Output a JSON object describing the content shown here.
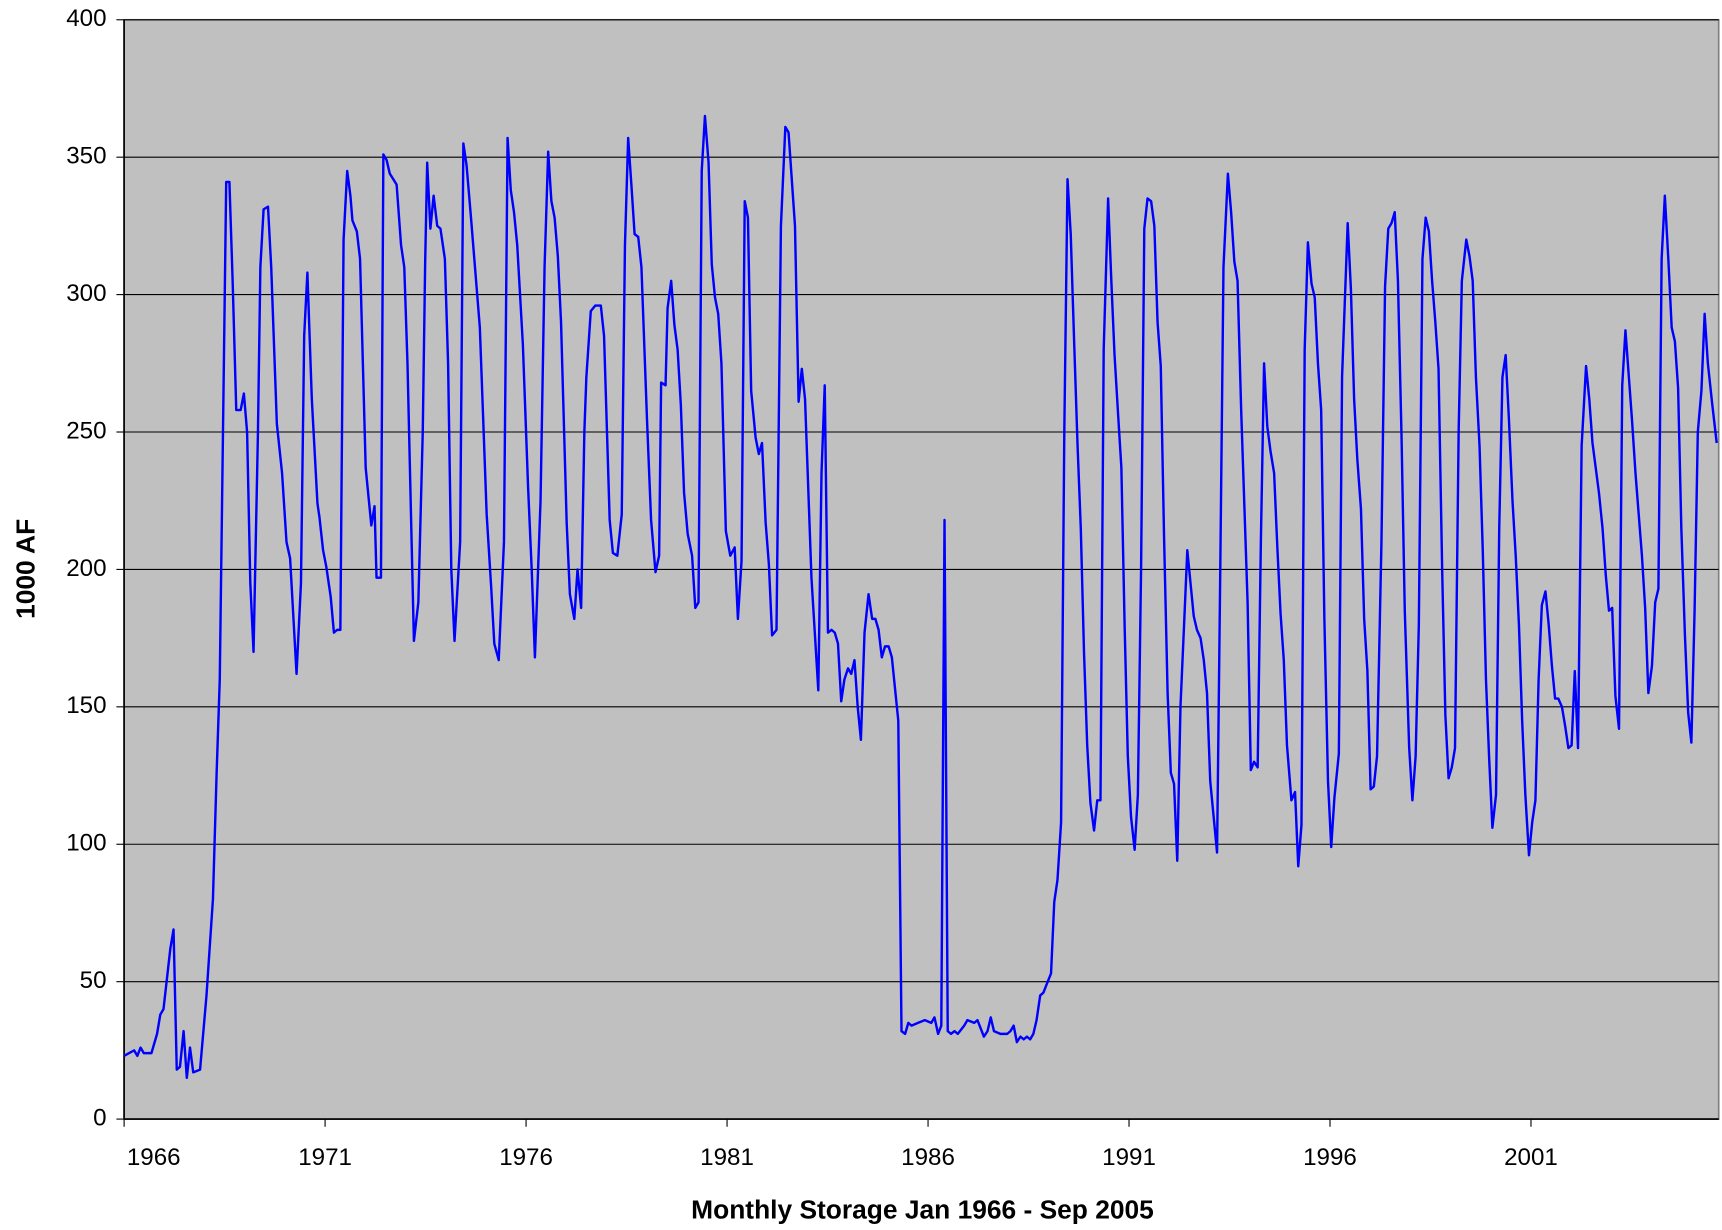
{
  "chart_data": {
    "type": "line",
    "title": "Monthly Storage  Jan 1966 - Sep 2005",
    "y_label": "1000 AF",
    "xlim": [
      1966,
      2005.67
    ],
    "xticks": [
      1966,
      1971,
      1976,
      1981,
      1986,
      1991,
      1996,
      2001
    ],
    "ylim": [
      0,
      400
    ],
    "yticks": [
      0,
      50,
      100,
      150,
      200,
      250,
      300,
      350,
      400
    ],
    "grid": true,
    "background": "#c0c0c0",
    "series": [
      {
        "color": "#0000ff",
        "x": [
          1966.0,
          1966.25,
          1966.33,
          1966.41,
          1966.49,
          1966.68,
          1966.82,
          1966.9,
          1966.98,
          1967.15,
          1967.23,
          1967.31,
          1967.39,
          1967.48,
          1967.56,
          1967.64,
          1967.72,
          1967.89,
          1968.05,
          1968.21,
          1968.3,
          1968.38,
          1968.46,
          1968.54,
          1968.62,
          1968.7,
          1968.79,
          1968.9,
          1968.98,
          1969.06,
          1969.14,
          1969.22,
          1969.33,
          1969.39,
          1969.47,
          1969.58,
          1969.66,
          1969.8,
          1969.93,
          1970.04,
          1970.13,
          1970.29,
          1970.4,
          1970.48,
          1970.56,
          1970.67,
          1970.81,
          1970.86,
          1970.95,
          1971.03,
          1971.14,
          1971.22,
          1971.3,
          1971.38,
          1971.46,
          1971.55,
          1971.63,
          1971.68,
          1971.79,
          1971.87,
          1972.01,
          1972.15,
          1972.23,
          1972.28,
          1972.39,
          1972.45,
          1972.53,
          1972.61,
          1972.78,
          1972.89,
          1972.97,
          1973.05,
          1973.21,
          1973.32,
          1973.43,
          1973.49,
          1973.54,
          1973.62,
          1973.7,
          1973.79,
          1973.87,
          1973.98,
          1974.06,
          1974.14,
          1974.22,
          1974.36,
          1974.44,
          1974.52,
          1974.63,
          1974.85,
          1975.02,
          1975.13,
          1975.21,
          1975.32,
          1975.45,
          1975.54,
          1975.62,
          1975.7,
          1975.78,
          1975.92,
          1976.05,
          1976.14,
          1976.22,
          1976.36,
          1976.46,
          1976.55,
          1976.63,
          1976.71,
          1976.79,
          1976.87,
          1977.01,
          1977.09,
          1977.2,
          1977.28,
          1977.37,
          1977.45,
          1977.5,
          1977.61,
          1977.72,
          1977.86,
          1977.94,
          1978.08,
          1978.16,
          1978.27,
          1978.38,
          1978.46,
          1978.54,
          1978.62,
          1978.7,
          1978.79,
          1978.87,
          1979.01,
          1979.11,
          1979.22,
          1979.31,
          1979.36,
          1979.47,
          1979.52,
          1979.61,
          1979.69,
          1979.77,
          1979.85,
          1979.93,
          1980.02,
          1980.13,
          1980.21,
          1980.29,
          1980.37,
          1980.45,
          1980.54,
          1980.62,
          1980.7,
          1980.78,
          1980.86,
          1980.97,
          1981.08,
          1981.19,
          1981.27,
          1981.36,
          1981.44,
          1981.52,
          1981.6,
          1981.71,
          1981.79,
          1981.87,
          1981.96,
          1982.04,
          1982.12,
          1982.23,
          1982.34,
          1982.45,
          1982.53,
          1982.69,
          1982.78,
          1982.86,
          1982.94,
          1983.1,
          1983.27,
          1983.35,
          1983.43,
          1983.51,
          1983.6,
          1983.68,
          1983.76,
          1983.84,
          1983.92,
          1984.01,
          1984.09,
          1984.17,
          1984.25,
          1984.33,
          1984.42,
          1984.52,
          1984.61,
          1984.69,
          1984.77,
          1984.85,
          1984.93,
          1985.02,
          1985.1,
          1985.26,
          1985.34,
          1985.43,
          1985.51,
          1985.59,
          1985.75,
          1985.92,
          1986.08,
          1986.16,
          1986.25,
          1986.33,
          1986.41,
          1986.49,
          1986.57,
          1986.66,
          1986.74,
          1986.9,
          1986.98,
          1987.15,
          1987.23,
          1987.31,
          1987.39,
          1987.48,
          1987.56,
          1987.64,
          1987.8,
          1987.97,
          1988.05,
          1988.13,
          1988.21,
          1988.3,
          1988.38,
          1988.46,
          1988.54,
          1988.62,
          1988.7,
          1988.79,
          1988.87,
          1988.95,
          1989.06,
          1989.14,
          1989.22,
          1989.31,
          1989.39,
          1989.47,
          1989.55,
          1989.63,
          1989.72,
          1989.8,
          1989.88,
          1989.96,
          1990.04,
          1990.13,
          1990.21,
          1990.29,
          1990.37,
          1990.48,
          1990.56,
          1990.64,
          1990.73,
          1990.81,
          1990.89,
          1990.97,
          1991.05,
          1991.14,
          1991.22,
          1991.3,
          1991.38,
          1991.46,
          1991.55,
          1991.63,
          1991.71,
          1991.79,
          1991.87,
          1991.96,
          1992.04,
          1992.12,
          1992.2,
          1992.28,
          1992.37,
          1992.45,
          1992.53,
          1992.61,
          1992.69,
          1992.78,
          1992.86,
          1992.94,
          1993.02,
          1993.19,
          1993.27,
          1993.35,
          1993.46,
          1993.54,
          1993.62,
          1993.7,
          1993.79,
          1993.95,
          1994.03,
          1994.11,
          1994.2,
          1994.28,
          1994.36,
          1994.44,
          1994.52,
          1994.61,
          1994.69,
          1994.77,
          1994.85,
          1994.93,
          1995.04,
          1995.13,
          1995.21,
          1995.29,
          1995.37,
          1995.45,
          1995.54,
          1995.62,
          1995.7,
          1995.78,
          1995.86,
          1995.95,
          1996.03,
          1996.11,
          1996.22,
          1996.3,
          1996.44,
          1996.52,
          1996.6,
          1996.68,
          1996.77,
          1996.85,
          1996.93,
          1997.01,
          1997.09,
          1997.17,
          1997.28,
          1997.37,
          1997.45,
          1997.53,
          1997.61,
          1997.69,
          1997.78,
          1997.86,
          1997.97,
          1998.05,
          1998.13,
          1998.21,
          1998.3,
          1998.38,
          1998.46,
          1998.54,
          1998.62,
          1998.7,
          1998.79,
          1998.87,
          1998.95,
          1999.03,
          1999.11,
          1999.2,
          1999.28,
          1999.39,
          1999.47,
          1999.55,
          1999.63,
          1999.72,
          1999.8,
          1999.88,
          1999.96,
          2000.04,
          2000.13,
          2000.21,
          2000.29,
          2000.37,
          2000.45,
          2000.54,
          2000.62,
          2000.7,
          2000.78,
          2000.86,
          2000.95,
          2001.03,
          2001.11,
          2001.19,
          2001.27,
          2001.36,
          2001.44,
          2001.52,
          2001.6,
          2001.68,
          2001.77,
          2001.85,
          2001.93,
          2002.01,
          2002.09,
          2002.17,
          2002.26,
          2002.37,
          2002.45,
          2002.53,
          2002.61,
          2002.69,
          2002.78,
          2002.86,
          2002.94,
          2003.02,
          2003.1,
          2003.19,
          2003.27,
          2003.35,
          2003.43,
          2003.51,
          2003.6,
          2003.68,
          2003.76,
          2003.84,
          2003.92,
          2004.01,
          2004.09,
          2004.17,
          2004.25,
          2004.33,
          2004.42,
          2004.5,
          2004.58,
          2004.66,
          2004.74,
          2004.83,
          2004.91,
          2004.99,
          2005.07,
          2005.15,
          2005.24,
          2005.32,
          2005.4,
          2005.51,
          2005.62
        ],
        "values": [
          23,
          25,
          23,
          26,
          24,
          24,
          31,
          38,
          40,
          62,
          69,
          18,
          19,
          32,
          15,
          26,
          17,
          18,
          45,
          80,
          125,
          160,
          250,
          341,
          341,
          305,
          258,
          258,
          264,
          250,
          195,
          170,
          250,
          310,
          331,
          332,
          310,
          253,
          235,
          210,
          204,
          162,
          195,
          285,
          308,
          262,
          224,
          219,
          207,
          201,
          190,
          177,
          178,
          178,
          320,
          345,
          336,
          327,
          323,
          313,
          237,
          216,
          223,
          197,
          197,
          351,
          349,
          344,
          340,
          318,
          310,
          275,
          174,
          188,
          250,
          312,
          348,
          324,
          336,
          325,
          324,
          313,
          275,
          200,
          174,
          210,
          355,
          347,
          328,
          288,
          220,
          194,
          173,
          167,
          210,
          357,
          338,
          330,
          318,
          282,
          230,
          200,
          168,
          225,
          310,
          352,
          334,
          328,
          314,
          290,
          217,
          191,
          182,
          200,
          186,
          250,
          270,
          294,
          296,
          296,
          285,
          218,
          206,
          205,
          220,
          318,
          357,
          340,
          322,
          321,
          310,
          254,
          218,
          199,
          205,
          268,
          267,
          295,
          305,
          289,
          280,
          260,
          228,
          213,
          205,
          186,
          188,
          345,
          365,
          348,
          311,
          299,
          293,
          275,
          214,
          205,
          208,
          182,
          203,
          334,
          328,
          265,
          248,
          242,
          246,
          217,
          202,
          176,
          178,
          325,
          361,
          359,
          325,
          261,
          273,
          262,
          197,
          156,
          235,
          267,
          177,
          178,
          177,
          173,
          152,
          160,
          164,
          162,
          167,
          150,
          138,
          177,
          191,
          182,
          182,
          178,
          168,
          172,
          172,
          168,
          145,
          32,
          31,
          35,
          34,
          35,
          36,
          35,
          37,
          31,
          34,
          218,
          32,
          31,
          32,
          31,
          34,
          36,
          35,
          36,
          33,
          30,
          32,
          37,
          32,
          31,
          31,
          32,
          34,
          28,
          30,
          29,
          30,
          29,
          31,
          36,
          45,
          46,
          49,
          53,
          79,
          87,
          108,
          250,
          342,
          322,
          285,
          245,
          215,
          170,
          136,
          115,
          105,
          116,
          116,
          280,
          335,
          305,
          278,
          256,
          237,
          180,
          132,
          110,
          98,
          118,
          200,
          324,
          335,
          334,
          325,
          290,
          274,
          213,
          155,
          126,
          122,
          94,
          150,
          180,
          207,
          195,
          183,
          178,
          175,
          167,
          155,
          123,
          97,
          200,
          310,
          344,
          330,
          312,
          305,
          258,
          188,
          127,
          130,
          128,
          210,
          275,
          252,
          243,
          235,
          208,
          184,
          167,
          136,
          116,
          119,
          92,
          107,
          280,
          319,
          304,
          299,
          275,
          258,
          182,
          123,
          99,
          117,
          133,
          270,
          326,
          302,
          262,
          240,
          222,
          182,
          163,
          120,
          121,
          132,
          210,
          303,
          324,
          326,
          330,
          305,
          248,
          185,
          135,
          116,
          132,
          180,
          313,
          328,
          323,
          305,
          290,
          273,
          200,
          147,
          124,
          128,
          135,
          250,
          305,
          320,
          314,
          305,
          270,
          245,
          207,
          160,
          131,
          106,
          118,
          215,
          270,
          278,
          255,
          225,
          205,
          180,
          145,
          118,
          96,
          108,
          116,
          160,
          187,
          192,
          180,
          165,
          153,
          153,
          150,
          143,
          135,
          136,
          163,
          135,
          245,
          274,
          262,
          246,
          237,
          228,
          215,
          198,
          185,
          186,
          154,
          142,
          267,
          287,
          271,
          255,
          235,
          220,
          205,
          186,
          155,
          165,
          188,
          193,
          313,
          336,
          312,
          288,
          283,
          266,
          215,
          176,
          148,
          137,
          185,
          250,
          265,
          293,
          275,
          260,
          246
        ]
      }
    ]
  }
}
